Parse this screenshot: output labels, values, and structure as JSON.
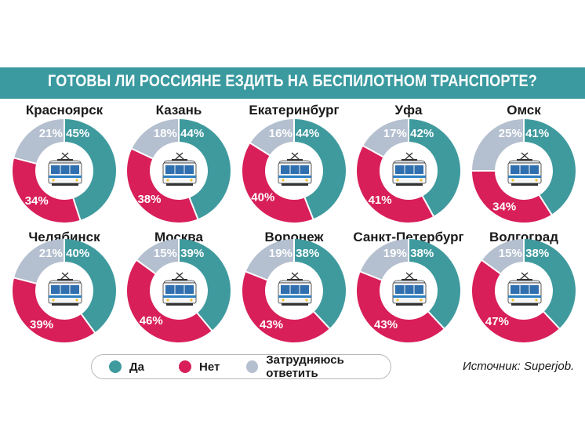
{
  "title": "ГОТОВЫ ЛИ РОССИЯНЕ ЕЗДИТЬ НА БЕСПИЛОТНОМ ТРАНСПОРТЕ?",
  "source": "Источник: Superjob.",
  "colors": {
    "yes": "#3f9a9e",
    "no": "#d81f5a",
    "unsure": "#b4bfcf",
    "title_bg": "#3a9aa0"
  },
  "legend": [
    {
      "label": "Да",
      "color": "#3f9a9e"
    },
    {
      "label": "Нет",
      "color": "#d81f5a"
    },
    {
      "label": "Затрудняюсь ответить",
      "color": "#b4bfcf"
    }
  ],
  "chart_data": {
    "type": "pie",
    "variant": "donut",
    "series_order": [
      "Да",
      "Нет",
      "Затрудняюсь ответить"
    ],
    "charts": [
      {
        "city": "Красноярск",
        "values": [
          45,
          34,
          21
        ]
      },
      {
        "city": "Казань",
        "values": [
          44,
          38,
          18
        ]
      },
      {
        "city": "Екатеринбург",
        "values": [
          44,
          40,
          16
        ]
      },
      {
        "city": "Уфа",
        "values": [
          42,
          41,
          17
        ]
      },
      {
        "city": "Омск",
        "values": [
          41,
          34,
          25
        ]
      },
      {
        "city": "Челябинск",
        "values": [
          40,
          39,
          21
        ]
      },
      {
        "city": "Москва",
        "values": [
          39,
          46,
          15
        ]
      },
      {
        "city": "Воронеж",
        "values": [
          38,
          43,
          19
        ]
      },
      {
        "city": "Санкт-Петербург",
        "values": [
          38,
          43,
          19
        ]
      },
      {
        "city": "Волгоград",
        "values": [
          38,
          47,
          15
        ]
      }
    ]
  }
}
